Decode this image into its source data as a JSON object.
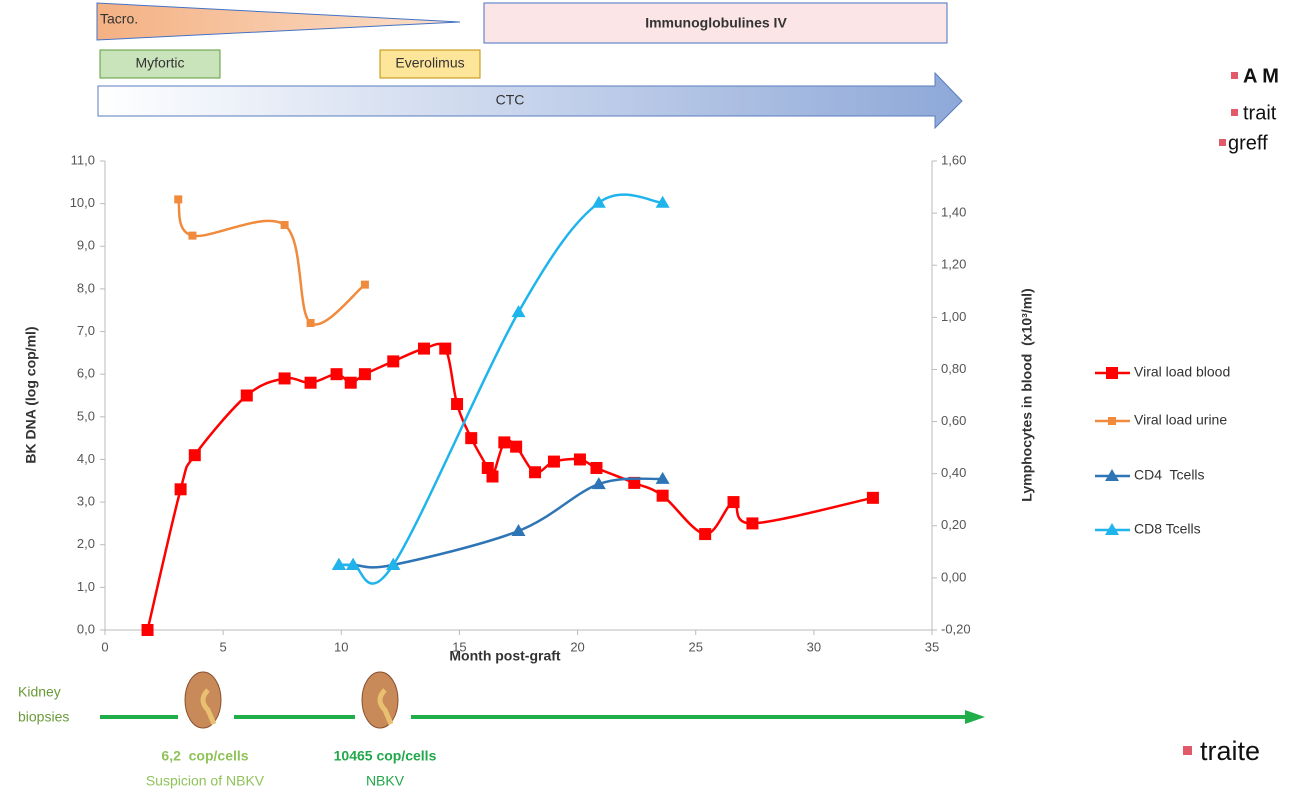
{
  "timeline": {
    "tacro": "Tacro.",
    "ivig": "Immunoglobulines IV",
    "myfortic": "Myfortic",
    "everolimus": "Everolimus",
    "ctc": "CTC"
  },
  "chart_data": {
    "type": "line",
    "x_label": "Month post-graft",
    "y_label": "BK DNA (log cop/ml)",
    "y2_label": "Lymphocytes in blood  (x10³/ml)",
    "xlim": [
      0,
      35
    ],
    "xticks": [
      0,
      5,
      10,
      15,
      20,
      25,
      30,
      35
    ],
    "ylim": [
      0,
      11
    ],
    "yticks": [
      {
        "value": 0,
        "label": "0,0"
      },
      {
        "value": 1,
        "label": "1,0"
      },
      {
        "value": 2,
        "label": "2,0"
      },
      {
        "value": 3,
        "label": "3,0"
      },
      {
        "value": 4,
        "label": "4,0"
      },
      {
        "value": 5,
        "label": "5,0"
      },
      {
        "value": 6,
        "label": "6,0"
      },
      {
        "value": 7,
        "label": "7,0"
      },
      {
        "value": 8,
        "label": "8,0"
      },
      {
        "value": 9,
        "label": "9,0"
      },
      {
        "value": 10,
        "label": "10,0"
      },
      {
        "value": 11,
        "label": "11,0"
      }
    ],
    "y2lim": [
      -0.2,
      1.6
    ],
    "y2ticks": [
      {
        "value": -0.2,
        "label": "-0,20"
      },
      {
        "value": 0,
        "label": "0,00"
      },
      {
        "value": 0.2,
        "label": "0,20"
      },
      {
        "value": 0.4,
        "label": "0,40"
      },
      {
        "value": 0.6,
        "label": "0,60"
      },
      {
        "value": 0.8,
        "label": "0,80"
      },
      {
        "value": 1,
        "label": "1,00"
      },
      {
        "value": 1.2,
        "label": "1,20"
      },
      {
        "value": 1.4,
        "label": "1,40"
      },
      {
        "value": 1.6,
        "label": "1,60"
      }
    ],
    "legend": "right",
    "series": [
      {
        "name": "Viral load blood",
        "color": "#ff0000",
        "marker": "square",
        "x": [
          1.8,
          3.2,
          3.8,
          6.0,
          7.6,
          8.7,
          9.8,
          10.4,
          11.0,
          12.2,
          13.5,
          14.4,
          14.9,
          15.5,
          16.2,
          16.4,
          16.9,
          17.4,
          18.2,
          19.0,
          20.1,
          20.8,
          22.4,
          23.6,
          25.4,
          26.6,
          27.4,
          32.5
        ],
        "values": [
          0.0,
          3.3,
          4.1,
          5.5,
          5.9,
          5.8,
          6.0,
          5.8,
          6.0,
          6.3,
          6.6,
          6.6,
          5.3,
          4.5,
          3.8,
          3.6,
          4.4,
          4.3,
          3.7,
          3.95,
          4.0,
          3.8,
          3.45,
          3.15,
          2.25,
          3.0,
          2.5,
          3.1
        ]
      },
      {
        "name": "Viral load urine",
        "color": "#f08a3c",
        "marker": "small-square",
        "x": [
          3.1,
          3.7,
          7.6,
          8.7,
          11.0
        ],
        "values": [
          10.1,
          9.25,
          9.5,
          7.2,
          8.1
        ]
      },
      {
        "name": "CD4  Tcells",
        "color": "#2e75b6",
        "marker": "triangle",
        "axis": "y2",
        "x": [
          9.9,
          10.5,
          12.2,
          17.5,
          20.9,
          23.6
        ],
        "values": [
          0.05,
          0.05,
          0.05,
          0.18,
          0.36,
          0.38
        ]
      },
      {
        "name": "CD8 Tcells",
        "color": "#1fb4ec",
        "marker": "triangle",
        "axis": "y2",
        "x": [
          9.9,
          10.5,
          12.2,
          17.5,
          20.9,
          23.6
        ],
        "values": [
          0.05,
          0.05,
          0.05,
          1.02,
          1.44,
          1.44
        ]
      }
    ]
  },
  "biopsies": {
    "label_1": "Kidney",
    "label_2": "biopsies",
    "b1_value": "6,2  cop/cells",
    "b1_note": "Suspicion of NBKV",
    "b2_value": "10465 cop/cells",
    "b2_note": "NBKV"
  },
  "bullets": [
    "A M",
    "trait",
    "greff",
    "traite"
  ]
}
